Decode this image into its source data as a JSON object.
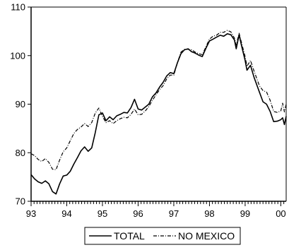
{
  "chart_data": {
    "type": "line",
    "title": "",
    "xlabel": "",
    "ylabel": "",
    "xlim": [
      1993.0,
      2000.15
    ],
    "ylim": [
      70,
      110
    ],
    "x_ticks": [
      "93",
      "94",
      "95",
      "96",
      "97",
      "98",
      "99",
      "00"
    ],
    "y_ticks": [
      "70",
      "80",
      "90",
      "100",
      "110"
    ],
    "grid": false,
    "legend_position": "bottom-center",
    "series": [
      {
        "name": "TOTAL",
        "style": "solid",
        "color": "#000000",
        "points": [
          [
            1993.0,
            75.5
          ],
          [
            1993.1,
            74.6
          ],
          [
            1993.2,
            74.0
          ],
          [
            1993.3,
            73.7
          ],
          [
            1993.4,
            74.2
          ],
          [
            1993.5,
            73.6
          ],
          [
            1993.6,
            72.0
          ],
          [
            1993.7,
            71.5
          ],
          [
            1993.8,
            73.6
          ],
          [
            1993.9,
            75.2
          ],
          [
            1994.0,
            75.4
          ],
          [
            1994.1,
            76.2
          ],
          [
            1994.2,
            77.7
          ],
          [
            1994.3,
            79.0
          ],
          [
            1994.4,
            80.4
          ],
          [
            1994.5,
            81.2
          ],
          [
            1994.6,
            80.3
          ],
          [
            1994.7,
            81.0
          ],
          [
            1994.8,
            84.2
          ],
          [
            1994.9,
            87.8
          ],
          [
            1995.0,
            88.2
          ],
          [
            1995.1,
            86.6
          ],
          [
            1995.2,
            87.4
          ],
          [
            1995.3,
            86.8
          ],
          [
            1995.4,
            87.6
          ],
          [
            1995.5,
            87.9
          ],
          [
            1995.6,
            88.3
          ],
          [
            1995.7,
            88.2
          ],
          [
            1995.8,
            89.3
          ],
          [
            1995.9,
            91.0
          ],
          [
            1996.0,
            89.0
          ],
          [
            1996.1,
            88.8
          ],
          [
            1996.2,
            89.4
          ],
          [
            1996.3,
            90.0
          ],
          [
            1996.4,
            91.5
          ],
          [
            1996.5,
            92.3
          ],
          [
            1996.6,
            93.5
          ],
          [
            1996.7,
            94.5
          ],
          [
            1996.8,
            95.8
          ],
          [
            1996.9,
            96.5
          ],
          [
            1997.0,
            96.3
          ],
          [
            1997.1,
            98.5
          ],
          [
            1997.2,
            100.4
          ],
          [
            1997.3,
            101.2
          ],
          [
            1997.4,
            101.4
          ],
          [
            1997.5,
            100.8
          ],
          [
            1997.6,
            100.5
          ],
          [
            1997.7,
            100.1
          ],
          [
            1997.8,
            99.8
          ],
          [
            1997.9,
            101.5
          ],
          [
            1998.0,
            103.0
          ],
          [
            1998.1,
            103.4
          ],
          [
            1998.2,
            103.8
          ],
          [
            1998.3,
            104.2
          ],
          [
            1998.4,
            104.0
          ],
          [
            1998.5,
            104.5
          ],
          [
            1998.6,
            104.3
          ],
          [
            1998.7,
            103.2
          ],
          [
            1998.75,
            101.4
          ],
          [
            1998.83,
            104.3
          ],
          [
            1998.9,
            102.0
          ],
          [
            1999.0,
            99.0
          ],
          [
            1999.05,
            97.0
          ],
          [
            1999.15,
            98.0
          ],
          [
            1999.25,
            95.5
          ],
          [
            1999.4,
            92.5
          ],
          [
            1999.5,
            90.5
          ],
          [
            1999.6,
            90.0
          ],
          [
            1999.7,
            88.5
          ],
          [
            1999.8,
            86.4
          ],
          [
            1999.9,
            86.5
          ],
          [
            2000.0,
            86.8
          ],
          [
            2000.05,
            87.2
          ],
          [
            2000.1,
            85.8
          ],
          [
            2000.15,
            87.5
          ]
        ]
      },
      {
        "name": "NO MEXICO",
        "style": "dash-dot",
        "color": "#000000",
        "points": [
          [
            1993.0,
            79.8
          ],
          [
            1993.1,
            79.4
          ],
          [
            1993.2,
            78.6
          ],
          [
            1993.3,
            78.2
          ],
          [
            1993.4,
            78.8
          ],
          [
            1993.5,
            78.0
          ],
          [
            1993.6,
            76.6
          ],
          [
            1993.7,
            76.5
          ],
          [
            1993.8,
            78.5
          ],
          [
            1993.9,
            80.2
          ],
          [
            1994.0,
            81.0
          ],
          [
            1994.1,
            82.5
          ],
          [
            1994.2,
            84.0
          ],
          [
            1994.3,
            84.8
          ],
          [
            1994.4,
            85.3
          ],
          [
            1994.5,
            86.0
          ],
          [
            1994.6,
            85.4
          ],
          [
            1994.7,
            86.2
          ],
          [
            1994.8,
            88.2
          ],
          [
            1994.9,
            89.2
          ],
          [
            1995.0,
            87.5
          ],
          [
            1995.1,
            86.2
          ],
          [
            1995.2,
            86.6
          ],
          [
            1995.3,
            86.0
          ],
          [
            1995.4,
            86.6
          ],
          [
            1995.5,
            87.0
          ],
          [
            1995.6,
            87.3
          ],
          [
            1995.7,
            87.2
          ],
          [
            1995.8,
            87.9
          ],
          [
            1995.9,
            89.0
          ],
          [
            1996.0,
            87.8
          ],
          [
            1996.1,
            87.9
          ],
          [
            1996.2,
            88.6
          ],
          [
            1996.3,
            89.5
          ],
          [
            1996.4,
            90.8
          ],
          [
            1996.5,
            91.9
          ],
          [
            1996.6,
            93.0
          ],
          [
            1996.7,
            93.8
          ],
          [
            1996.8,
            95.2
          ],
          [
            1996.9,
            96.0
          ],
          [
            1997.0,
            96.0
          ],
          [
            1997.1,
            98.5
          ],
          [
            1997.2,
            100.7
          ],
          [
            1997.3,
            101.3
          ],
          [
            1997.4,
            101.3
          ],
          [
            1997.5,
            101.2
          ],
          [
            1997.6,
            100.7
          ],
          [
            1997.7,
            100.4
          ],
          [
            1997.8,
            100.2
          ],
          [
            1997.9,
            101.8
          ],
          [
            1998.0,
            103.4
          ],
          [
            1998.1,
            104.0
          ],
          [
            1998.2,
            104.2
          ],
          [
            1998.3,
            104.8
          ],
          [
            1998.4,
            104.8
          ],
          [
            1998.5,
            105.2
          ],
          [
            1998.6,
            104.9
          ],
          [
            1998.7,
            103.6
          ],
          [
            1998.75,
            102.2
          ],
          [
            1998.83,
            104.6
          ],
          [
            1998.9,
            102.6
          ],
          [
            1999.0,
            99.8
          ],
          [
            1999.05,
            97.8
          ],
          [
            1999.15,
            99.0
          ],
          [
            1999.25,
            96.8
          ],
          [
            1999.4,
            93.8
          ],
          [
            1999.5,
            92.8
          ],
          [
            1999.6,
            92.5
          ],
          [
            1999.7,
            90.8
          ],
          [
            1999.8,
            88.5
          ],
          [
            1999.9,
            88.3
          ],
          [
            2000.0,
            88.6
          ],
          [
            2000.05,
            90.2
          ],
          [
            2000.1,
            88.4
          ],
          [
            2000.15,
            90.0
          ]
        ]
      }
    ]
  }
}
